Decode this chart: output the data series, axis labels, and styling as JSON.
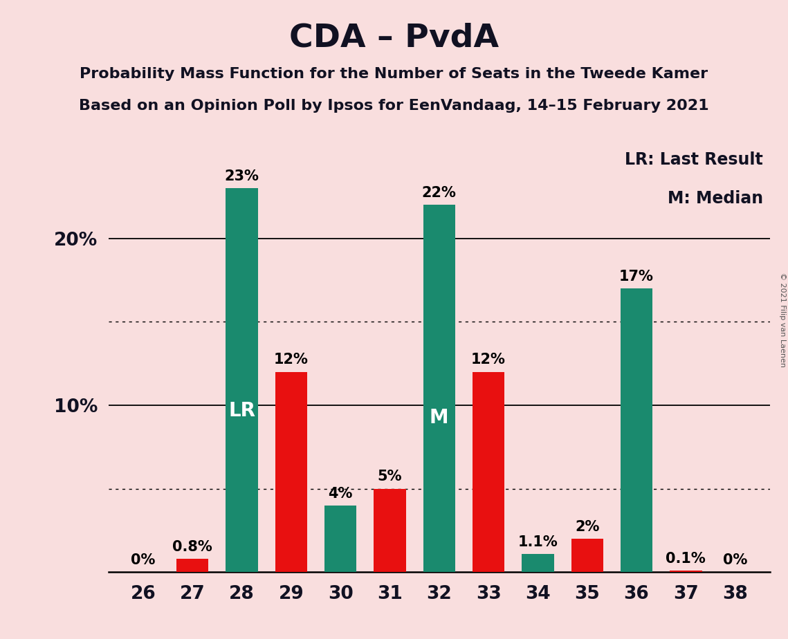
{
  "title": "CDA – PvdA",
  "subtitle1": "Probability Mass Function for the Number of Seats in the Tweede Kamer",
  "subtitle2": "Based on an Opinion Poll by Ipsos for EenVandaag, 14–15 February 2021",
  "copyright": "© 2021 Filip van Laenen",
  "legend1": "LR: Last Result",
  "legend2": "M: Median",
  "background_color": "#f9dede",
  "bar_color_green": "#1a8a6e",
  "bar_color_red": "#e81010",
  "seats": [
    26,
    27,
    28,
    29,
    30,
    31,
    32,
    33,
    34,
    35,
    36,
    37,
    38
  ],
  "bar_values": [
    0.0,
    0.8,
    23.0,
    12.0,
    4.0,
    5.0,
    22.0,
    12.0,
    1.1,
    2.0,
    17.0,
    0.1,
    0.0
  ],
  "bar_colors": [
    "green",
    "red",
    "green",
    "red",
    "green",
    "red",
    "green",
    "red",
    "green",
    "red",
    "green",
    "red",
    "green"
  ],
  "bar_labels": [
    "0%",
    "0.8%",
    "23%",
    "12%",
    "4%",
    "5%",
    "22%",
    "12%",
    "1.1%",
    "2%",
    "17%",
    "0.1%",
    "0%"
  ],
  "LR_seat": 28,
  "M_seat": 32,
  "ylim": [
    0,
    26
  ],
  "solid_hlines": [
    10,
    20
  ],
  "dotted_hlines": [
    5,
    15
  ],
  "ytick_positions": [
    10,
    20
  ],
  "ytick_labels": [
    "10%",
    "20%"
  ],
  "bar_width": 0.65,
  "label_fontsize": 15,
  "tick_fontsize": 19,
  "title_fontsize": 34,
  "subtitle_fontsize": 16,
  "legend_fontsize": 17,
  "lr_m_fontsize": 20
}
